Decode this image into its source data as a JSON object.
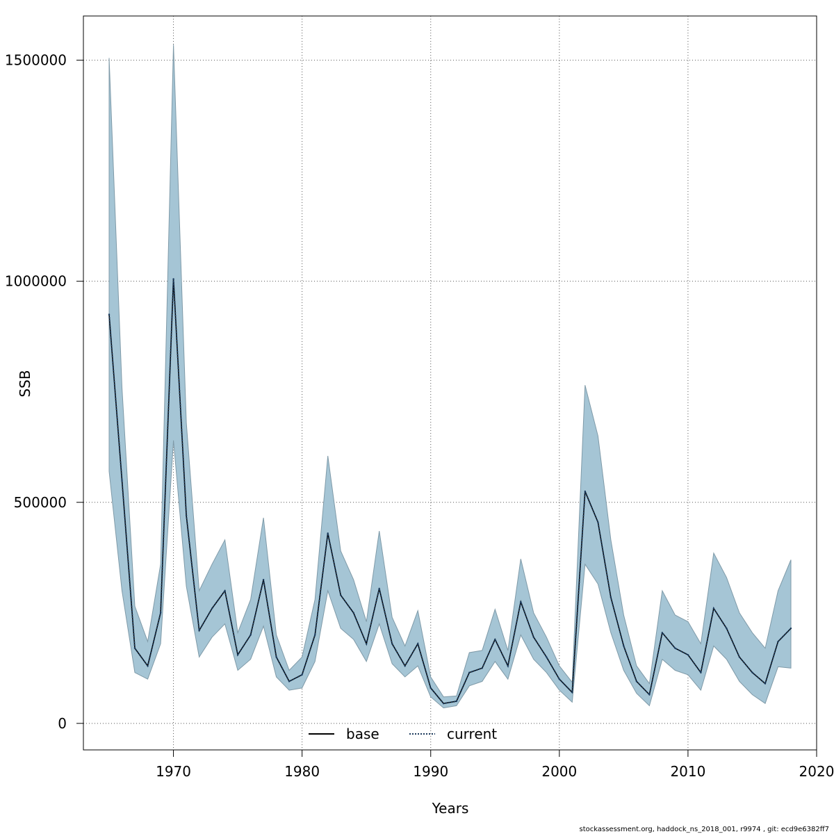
{
  "chart_data": {
    "type": "line",
    "xlabel": "Years",
    "ylabel": "SSB",
    "xlim": [
      1963,
      2020
    ],
    "ylim": [
      -60000,
      1600000
    ],
    "x_ticks": [
      1970,
      1980,
      1990,
      2000,
      2010,
      2020
    ],
    "y_ticks": [
      0,
      500000,
      1000000,
      1500000
    ],
    "grid": true,
    "legend_position": "bottom-center",
    "colors": {
      "band": "#a5c5d5",
      "band_edge": "#7f9aa8",
      "current": "#1b3a5c",
      "base": "#000000",
      "grid": "#555555"
    },
    "years": [
      1965,
      1966,
      1967,
      1968,
      1969,
      1970,
      1971,
      1972,
      1973,
      1974,
      1975,
      1976,
      1977,
      1978,
      1979,
      1980,
      1981,
      1982,
      1983,
      1984,
      1985,
      1986,
      1987,
      1988,
      1989,
      1990,
      1991,
      1992,
      1993,
      1994,
      1995,
      1996,
      1997,
      1998,
      1999,
      2000,
      2001,
      2002,
      2003,
      2004,
      2005,
      2006,
      2007,
      2008,
      2009,
      2010,
      2011,
      2012,
      2013,
      2014,
      2015,
      2016,
      2017,
      2018
    ],
    "series": [
      {
        "name": "base",
        "style": "solid",
        "values": [
          925000,
          550000,
          170000,
          130000,
          250000,
          1005000,
          470000,
          210000,
          260000,
          300000,
          155000,
          200000,
          325000,
          150000,
          95000,
          110000,
          200000,
          430000,
          290000,
          250000,
          180000,
          305000,
          180000,
          130000,
          180000,
          80000,
          45000,
          50000,
          115000,
          125000,
          190000,
          130000,
          275000,
          195000,
          150000,
          100000,
          70000,
          525000,
          455000,
          285000,
          175000,
          95000,
          65000,
          205000,
          170000,
          155000,
          115000,
          260000,
          215000,
          150000,
          115000,
          90000,
          185000,
          215000
        ]
      },
      {
        "name": "current",
        "style": "dotted",
        "values": [
          925000,
          550000,
          170000,
          130000,
          250000,
          1005000,
          470000,
          210000,
          260000,
          300000,
          155000,
          200000,
          325000,
          150000,
          95000,
          110000,
          200000,
          430000,
          290000,
          250000,
          180000,
          305000,
          180000,
          130000,
          180000,
          80000,
          45000,
          50000,
          115000,
          125000,
          190000,
          130000,
          275000,
          195000,
          150000,
          100000,
          70000,
          525000,
          455000,
          285000,
          175000,
          95000,
          65000,
          205000,
          170000,
          155000,
          115000,
          260000,
          215000,
          150000,
          115000,
          90000,
          185000,
          215000
        ]
      }
    ],
    "confidence_band": {
      "series": "current",
      "lower": [
        570000,
        300000,
        115000,
        100000,
        180000,
        640000,
        310000,
        150000,
        195000,
        225000,
        120000,
        145000,
        220000,
        105000,
        75000,
        80000,
        140000,
        300000,
        215000,
        190000,
        140000,
        225000,
        135000,
        105000,
        130000,
        60000,
        35000,
        40000,
        85000,
        95000,
        140000,
        100000,
        200000,
        145000,
        115000,
        75000,
        48000,
        360000,
        315000,
        205000,
        120000,
        68000,
        40000,
        145000,
        120000,
        110000,
        75000,
        175000,
        145000,
        95000,
        65000,
        45000,
        128000,
        125000
      ],
      "upper": [
        1505000,
        760000,
        265000,
        185000,
        360000,
        1535000,
        680000,
        300000,
        360000,
        415000,
        205000,
        280000,
        465000,
        200000,
        120000,
        150000,
        280000,
        605000,
        390000,
        325000,
        230000,
        435000,
        240000,
        175000,
        255000,
        105000,
        60000,
        62000,
        160000,
        165000,
        258000,
        165000,
        372000,
        250000,
        195000,
        130000,
        93000,
        765000,
        650000,
        415000,
        245000,
        130000,
        90000,
        300000,
        245000,
        230000,
        180000,
        385000,
        330000,
        250000,
        205000,
        170000,
        300000,
        370000
      ]
    }
  },
  "legend": {
    "base": "base",
    "current": "current"
  },
  "footer": "stockassessment.org, haddock_ns_2018_001, r9974 , git: ecd9e6382ff7"
}
